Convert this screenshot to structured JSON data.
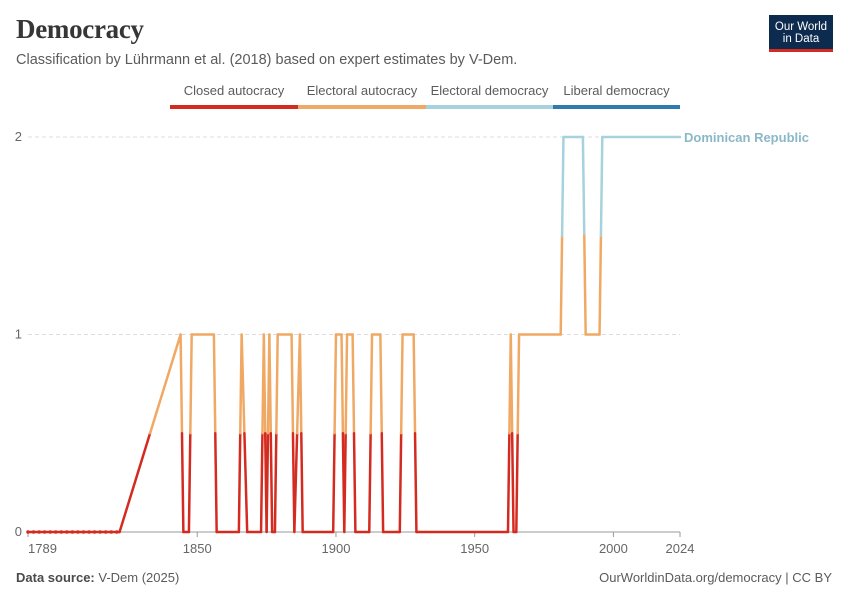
{
  "header": {
    "title": "Democracy",
    "subtitle": "Classification by Lührmann et al. (2018) based on expert estimates by V-Dem.",
    "logo_line1": "Our World",
    "logo_line2": "in Data"
  },
  "legend": [
    {
      "label": "Closed autocracy",
      "color": "#d42b21"
    },
    {
      "label": "Electoral autocracy",
      "color": "#f0a965"
    },
    {
      "label": "Electoral democracy",
      "color": "#a7d2dd"
    },
    {
      "label": "Liberal democracy",
      "color": "#2f7bad"
    }
  ],
  "footer": {
    "source_label": "Data source:",
    "source_value": "V-Dem (2025)",
    "url": "OurWorldinData.org/democracy | CC BY"
  },
  "chart_data": {
    "type": "line",
    "title": "Democracy",
    "entity": "Dominican Republic",
    "entity_color": "#8ab8c7",
    "xlim": [
      1789,
      2024
    ],
    "ylim": [
      0,
      2
    ],
    "x_ticks": [
      "1789",
      "1850",
      "1900",
      "1950",
      "2000",
      "2024"
    ],
    "y_ticks": [
      "0",
      "1",
      "2"
    ],
    "grid": "horizontal dashed",
    "color_by_value": {
      "0": "#d42b21",
      "1": "#f0a965",
      "2": "#a7d2dd"
    },
    "series": [
      {
        "name": "Dominican Republic",
        "points": [
          [
            1789,
            0
          ],
          [
            1822,
            0
          ],
          [
            1844,
            1
          ],
          [
            1845,
            0
          ],
          [
            1847,
            0
          ],
          [
            1848,
            1
          ],
          [
            1856,
            1
          ],
          [
            1857,
            0
          ],
          [
            1865,
            0
          ],
          [
            1866,
            1
          ],
          [
            1868,
            0
          ],
          [
            1873,
            0
          ],
          [
            1874,
            1
          ],
          [
            1875,
            0
          ],
          [
            1876,
            1
          ],
          [
            1877,
            0
          ],
          [
            1878,
            0
          ],
          [
            1879,
            1
          ],
          [
            1884,
            1
          ],
          [
            1885,
            0
          ],
          [
            1887,
            1
          ],
          [
            1888,
            0
          ],
          [
            1899,
            0
          ],
          [
            1900,
            1
          ],
          [
            1902,
            1
          ],
          [
            1903,
            0
          ],
          [
            1904,
            1
          ],
          [
            1906,
            1
          ],
          [
            1907,
            0
          ],
          [
            1912,
            0
          ],
          [
            1913,
            1
          ],
          [
            1916,
            1
          ],
          [
            1917,
            0
          ],
          [
            1923,
            0
          ],
          [
            1924,
            1
          ],
          [
            1928,
            1
          ],
          [
            1929,
            0
          ],
          [
            1962,
            0
          ],
          [
            1963,
            1
          ],
          [
            1964,
            0
          ],
          [
            1965,
            0
          ],
          [
            1966,
            1
          ],
          [
            1981,
            1
          ],
          [
            1982,
            2
          ],
          [
            1989,
            2
          ],
          [
            1990,
            1
          ],
          [
            1995,
            1
          ],
          [
            1996,
            2
          ],
          [
            2024,
            2
          ]
        ]
      }
    ]
  }
}
